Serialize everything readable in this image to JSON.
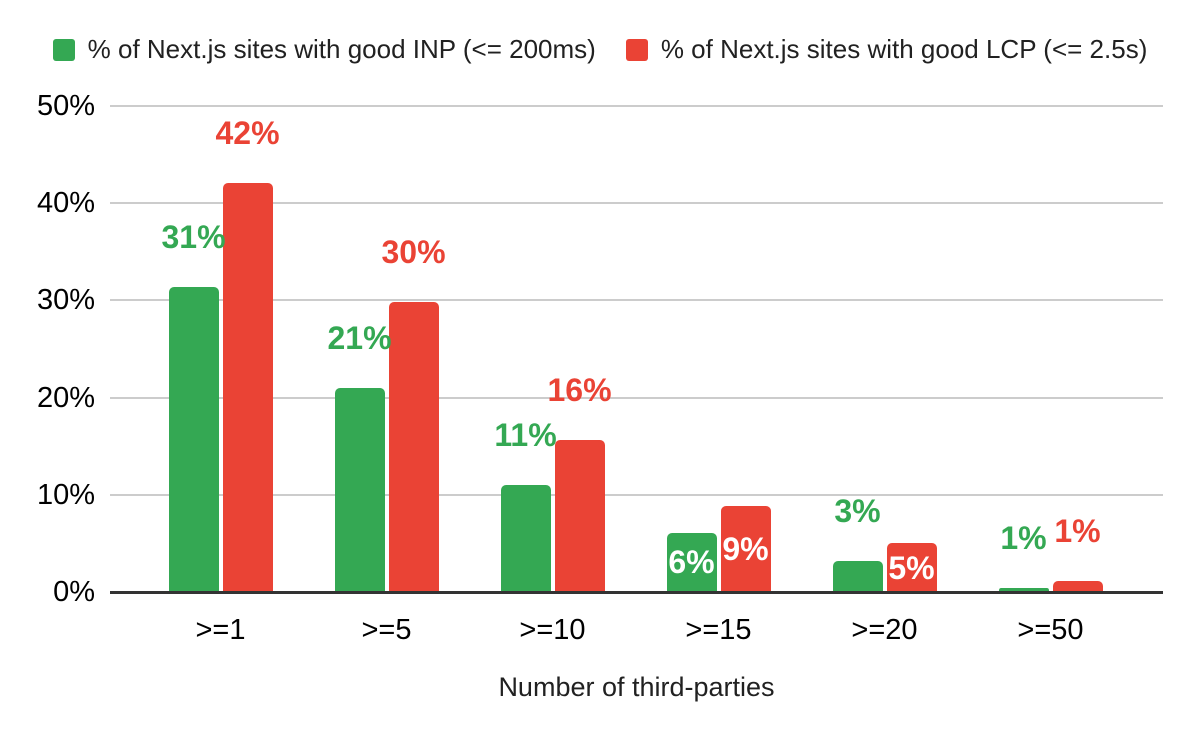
{
  "chart_data": {
    "type": "bar",
    "title": "",
    "xlabel": "Number of third-parties",
    "ylabel": "",
    "categories": [
      ">=1",
      ">=5",
      ">=10",
      ">=15",
      ">=20",
      ">=50"
    ],
    "series": [
      {
        "name": "% of Next.js sites with good INP (<= 200ms)",
        "color": "#34a853",
        "values": [
          31,
          21,
          11,
          6,
          3,
          1
        ],
        "labels": [
          "31%",
          "21%",
          "11%",
          "6%",
          "3%",
          "1%"
        ],
        "bar_heights_pct": [
          31.4,
          21.0,
          11.0,
          6.1,
          3.2,
          0.45
        ],
        "label_placement": [
          "above",
          "above",
          "above",
          "inside",
          "above",
          "above"
        ]
      },
      {
        "name": "% of Next.js sites with good LCP (<= 2.5s)",
        "color": "#ea4335",
        "values": [
          42,
          30,
          16,
          9,
          5,
          1
        ],
        "labels": [
          "42%",
          "30%",
          "16%",
          "9%",
          "5%",
          "1%"
        ],
        "bar_heights_pct": [
          42.1,
          29.8,
          15.6,
          8.8,
          5.0,
          1.1
        ],
        "label_placement": [
          "above",
          "above",
          "above",
          "inside",
          "inside",
          "above"
        ]
      }
    ],
    "y_ticks": [
      "0%",
      "10%",
      "20%",
      "30%",
      "40%",
      "50%"
    ],
    "y_tick_values": [
      0,
      10,
      20,
      30,
      40,
      50
    ],
    "ylim": [
      0,
      50
    ],
    "grid": true,
    "legend_position": "top",
    "inside_label_color": "#ffffff",
    "gridline_color": "#cccccc",
    "axisline_color": "#333333",
    "background_color": "#ffffff"
  }
}
